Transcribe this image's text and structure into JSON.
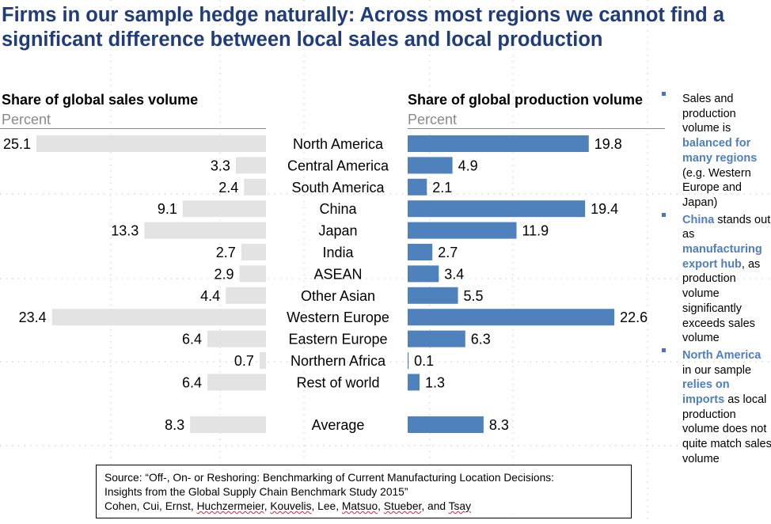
{
  "title": "Firms in our sample hedge naturally: Across most regions we cannot find a significant difference between local sales and local production",
  "left_panel": {
    "heading": "Share of global sales volume",
    "unit": "Percent"
  },
  "right_panel": {
    "heading": "Share of global production volume",
    "unit": "Percent"
  },
  "chart_data": {
    "type": "bar",
    "orientation": "horizontal",
    "layout": "butterfly",
    "categories": [
      "North America",
      "Central America",
      "South America",
      "China",
      "Japan",
      "India",
      "ASEAN",
      "Other Asian",
      "Western Europe",
      "Eastern Europe",
      "Northern Africa",
      "Rest of world",
      "Average"
    ],
    "series": [
      {
        "name": "Share of global sales volume",
        "values": [
          25.1,
          3.3,
          2.4,
          9.1,
          13.3,
          2.7,
          2.9,
          4.4,
          23.4,
          6.4,
          0.7,
          6.4,
          8.3
        ],
        "color": "#e3e3e3"
      },
      {
        "name": "Share of global production volume",
        "values": [
          19.8,
          4.9,
          2.1,
          19.4,
          11.9,
          2.7,
          3.4,
          5.5,
          22.6,
          6.3,
          0.1,
          1.3,
          8.3
        ],
        "color": "#4f81bd"
      }
    ],
    "value_labels": [
      "25.1",
      "3.3",
      "2.4",
      "9.1",
      "13.3",
      "2.7",
      "2.9",
      "4.4",
      "23.4",
      "6.4",
      "0.7",
      "6.4",
      "8.3",
      "19.8",
      "4.9",
      "2.1",
      "19.4",
      "11.9",
      "2.7",
      "3.4",
      "5.5",
      "22.6",
      "6.3",
      "0.1",
      "1.3",
      "8.3"
    ],
    "unit": "Percent",
    "xlim": [
      0,
      25.1
    ]
  },
  "notes": [
    {
      "parts": [
        {
          "t": "Sales and production volume is ",
          "hl": false
        },
        {
          "t": "balanced for many regions",
          "hl": true
        },
        {
          "t": " (e.g. Western Europe and Japan)",
          "hl": false
        }
      ]
    },
    {
      "parts": [
        {
          "t": "China",
          "hl": true
        },
        {
          "t": " stands out as ",
          "hl": false
        },
        {
          "t": "manufacturing export hub",
          "hl": true
        },
        {
          "t": ", as production volume significantly exceeds sales volume",
          "hl": false
        }
      ]
    },
    {
      "parts": [
        {
          "t": "North America",
          "hl": true
        },
        {
          "t": " in our sample ",
          "hl": false
        },
        {
          "t": "relies on imports",
          "hl": true
        },
        {
          "t": " as local production volume does not quite match sales volume",
          "hl": false
        }
      ]
    }
  ],
  "source": {
    "line1": "Source:  “Off-, On- or Reshoring: Benchmarking of Current Manufacturing Location Decisions:",
    "line2": "Insights from the Global Supply Chain Benchmark Study 2015”",
    "authors": [
      "Cohen, Cui, Ernst, ",
      "Huchzermeier",
      ", ",
      "Kouvelis",
      ", Lee, ",
      "Matsuo",
      ", ",
      "Stueber",
      ", and ",
      "Tsay"
    ]
  },
  "colors": {
    "title": "#1f3d7a",
    "production_bar": "#4f81bd",
    "sales_bar": "#e3e3e3",
    "highlight": "#4f7fbf"
  }
}
